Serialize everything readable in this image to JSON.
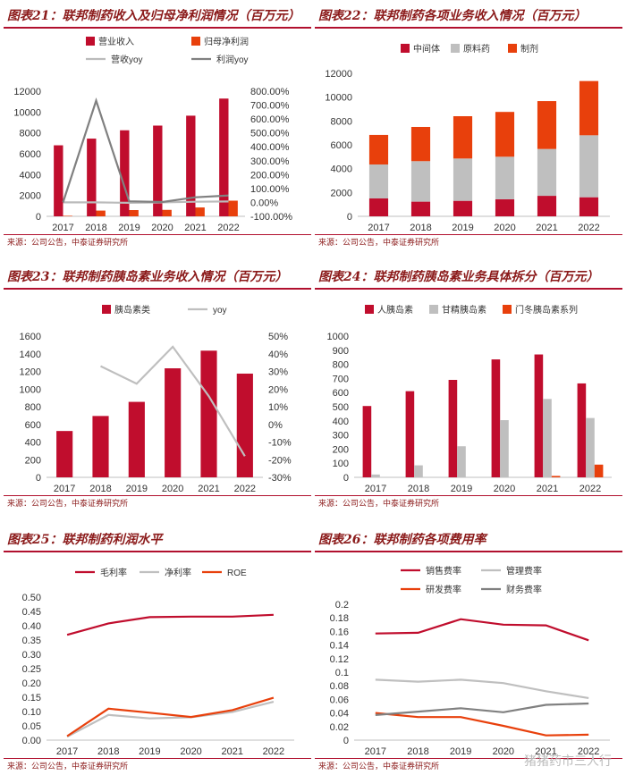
{
  "chart_data": [
    {
      "type": "bar",
      "title": "图表21：联邦制药收入及归母净利润情况（百万元）",
      "categories": [
        "2017",
        "2018",
        "2019",
        "2020",
        "2021",
        "2022"
      ],
      "series": [
        {
          "name": "营业收入",
          "kind": "bar",
          "axis": "left",
          "color": "#c00d2d",
          "values": [
            6810,
            7450,
            8250,
            8700,
            9650,
            11290
          ]
        },
        {
          "name": "归母净利润",
          "kind": "bar",
          "axis": "left",
          "color": "#e8400c",
          "values": [
            50,
            550,
            600,
            620,
            850,
            1500
          ]
        },
        {
          "name": "营收yoy",
          "kind": "line",
          "axis": "right",
          "color": "#bbbbbb",
          "values": [
            0.0,
            0.0,
            -0.03,
            0.0,
            0.05,
            0.07
          ]
        },
        {
          "name": "利润yoy",
          "kind": "line",
          "axis": "right",
          "color": "#808080",
          "values": [
            0.0,
            7.32,
            0.08,
            0.03,
            0.37,
            0.5
          ]
        }
      ],
      "ylim": [
        0,
        12000
      ],
      "yticks": [
        "0",
        "2000",
        "4000",
        "6000",
        "8000",
        "10000",
        "12000"
      ],
      "y2lim": [
        -1.0,
        8.0
      ],
      "y2ticks": [
        "-100.00%",
        "0.00%",
        "100.00%",
        "200.00%",
        "300.00%",
        "400.00%",
        "500.00%",
        "600.00%",
        "700.00%",
        "800.00%"
      ],
      "source": "来源：公司公告，中泰证券研究所"
    },
    {
      "type": "bar",
      "stacked": true,
      "title": "图表22：联邦制药各项业务收入情况（百万元）",
      "categories": [
        "2017",
        "2018",
        "2019",
        "2020",
        "2021",
        "2022"
      ],
      "series": [
        {
          "name": "中间体",
          "color": "#c00d2d",
          "values": [
            1500,
            1230,
            1300,
            1430,
            1720,
            1600
          ]
        },
        {
          "name": "原料药",
          "color": "#bfbfbf",
          "values": [
            2850,
            3400,
            3550,
            3570,
            3930,
            5200
          ]
        },
        {
          "name": "制剂",
          "color": "#e8400c",
          "values": [
            2480,
            2870,
            3550,
            3760,
            4020,
            4550
          ]
        }
      ],
      "ylim": [
        0,
        12000
      ],
      "yticks": [
        "0",
        "2000",
        "4000",
        "6000",
        "8000",
        "10000",
        "12000"
      ],
      "source": "来源：公司公告，中泰证券研究所"
    },
    {
      "type": "bar",
      "title": "图表23：联邦制药胰岛素业务收入情况（百万元）",
      "categories": [
        "2017",
        "2018",
        "2019",
        "2020",
        "2021",
        "2022"
      ],
      "series": [
        {
          "name": "胰岛素类",
          "kind": "bar",
          "axis": "left",
          "color": "#c00d2d",
          "values": [
            525,
            695,
            855,
            1235,
            1435,
            1175
          ]
        },
        {
          "name": "yoy",
          "kind": "line",
          "axis": "right",
          "color": "#bfbfbf",
          "values": [
            null,
            0.33,
            0.23,
            0.44,
            0.16,
            -0.18
          ]
        }
      ],
      "ylim": [
        0,
        1600
      ],
      "yticks": [
        "0",
        "200",
        "400",
        "600",
        "800",
        "1000",
        "1200",
        "1400",
        "1600"
      ],
      "y2lim": [
        -0.3,
        0.5
      ],
      "y2ticks": [
        "-30%",
        "-20%",
        "-10%",
        "0%",
        "10%",
        "20%",
        "30%",
        "40%",
        "50%"
      ],
      "source": "来源：公司公告，中泰证券研究所"
    },
    {
      "type": "bar",
      "title": "图表24：联邦制药胰岛素业务具体拆分（百万元）",
      "categories": [
        "2017",
        "2018",
        "2019",
        "2020",
        "2021",
        "2022"
      ],
      "series": [
        {
          "name": "人胰岛素",
          "color": "#c00d2d",
          "values": [
            505,
            610,
            690,
            835,
            870,
            665
          ]
        },
        {
          "name": "甘精胰岛素",
          "color": "#bfbfbf",
          "values": [
            20,
            85,
            220,
            405,
            555,
            420
          ]
        },
        {
          "name": "门冬胰岛素系列",
          "color": "#e8400c",
          "values": [
            0,
            0,
            0,
            0,
            10,
            90
          ]
        }
      ],
      "ylim": [
        0,
        1000
      ],
      "yticks": [
        "0",
        "100",
        "200",
        "300",
        "400",
        "500",
        "600",
        "700",
        "800",
        "900",
        "1000"
      ],
      "source": "来源：公司公告，中泰证券研究所"
    },
    {
      "type": "line",
      "title": "图表25：联邦制药利润水平",
      "categories": [
        "2017",
        "2018",
        "2019",
        "2020",
        "2021",
        "2022"
      ],
      "series": [
        {
          "name": "毛利率",
          "color": "#c00d2d",
          "values": [
            0.368,
            0.408,
            0.43,
            0.432,
            0.432,
            0.438
          ]
        },
        {
          "name": "净利率",
          "color": "#bfbfbf",
          "values": [
            0.012,
            0.088,
            0.076,
            0.08,
            0.098,
            0.134
          ]
        },
        {
          "name": "ROE",
          "color": "#e8400c",
          "values": [
            0.014,
            0.11,
            0.096,
            0.081,
            0.105,
            0.148
          ]
        }
      ],
      "ylim": [
        0,
        0.5
      ],
      "yticks": [
        "0.00",
        "0.05",
        "0.10",
        "0.15",
        "0.20",
        "0.25",
        "0.30",
        "0.35",
        "0.40",
        "0.45",
        "0.50"
      ],
      "source": "来源：公司公告，中泰证券研究所"
    },
    {
      "type": "line",
      "title": "图表26：联邦制药各项费用率",
      "categories": [
        "2017",
        "2018",
        "2019",
        "2020",
        "2021",
        "2022"
      ],
      "series": [
        {
          "name": "销售费率",
          "color": "#c00d2d",
          "values": [
            0.157,
            0.158,
            0.178,
            0.17,
            0.169,
            0.147
          ]
        },
        {
          "name": "管理费率",
          "color": "#bfbfbf",
          "values": [
            0.089,
            0.086,
            0.089,
            0.084,
            0.072,
            0.062
          ]
        },
        {
          "name": "研发费率",
          "color": "#e8400c",
          "values": [
            0.04,
            0.034,
            0.034,
            0.021,
            0.007,
            0.008
          ]
        },
        {
          "name": "财务费率",
          "color": "#808080",
          "values": [
            0.037,
            0.042,
            0.047,
            0.041,
            0.052,
            0.054
          ]
        }
      ],
      "ylim": [
        0,
        0.2
      ],
      "yticks": [
        "0",
        "0.02",
        "0.04",
        "0.06",
        "0.08",
        "0.1",
        "0.12",
        "0.14",
        "0.16",
        "0.18",
        "0.2"
      ],
      "source": "来源：公司公告，中泰证券研究所"
    }
  ],
  "watermark": "猪猪药市三人行"
}
